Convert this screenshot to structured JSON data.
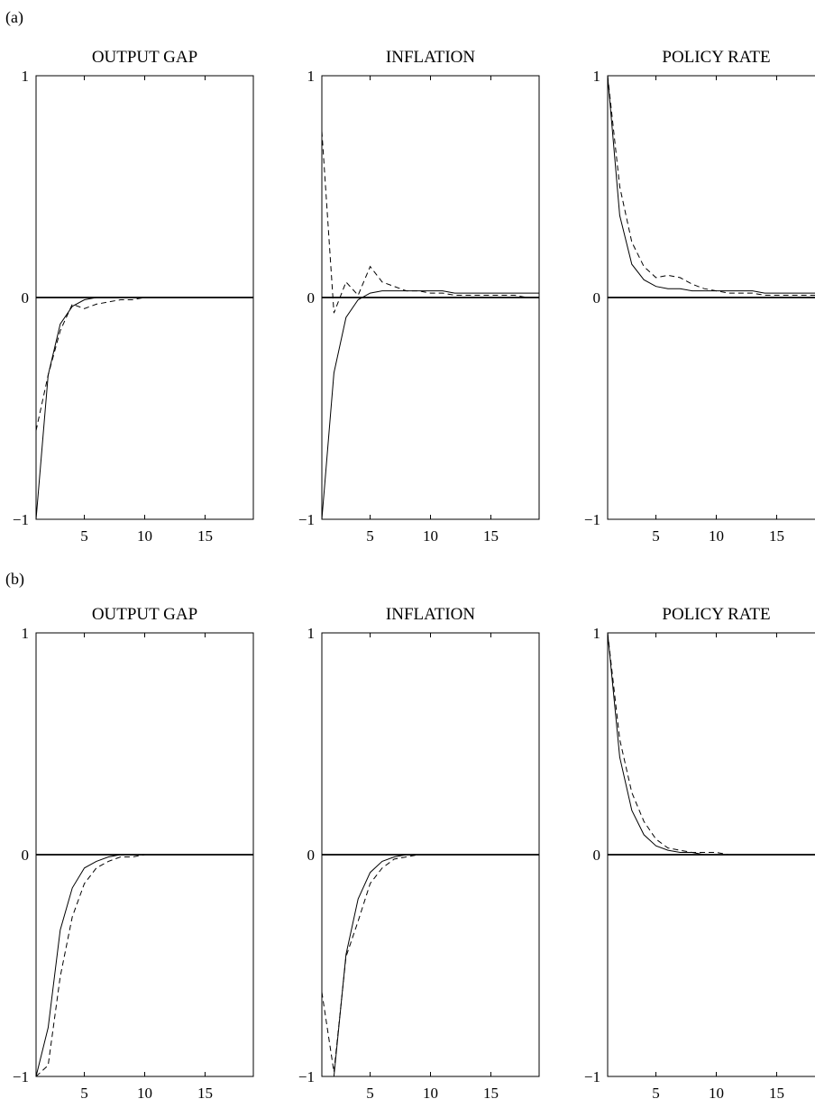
{
  "panel_labels": {
    "a": "(a)",
    "b": "(b)"
  },
  "chart_data": [
    {
      "panel": "a",
      "type": "line",
      "title": "OUTPUT GAP",
      "xlim": [
        1,
        19
      ],
      "ylim": [
        -1,
        1
      ],
      "xticks": [
        5,
        10,
        15
      ],
      "yticks": [
        -1,
        0,
        1
      ],
      "ytick_labels": [
        "−1",
        "0",
        "1"
      ],
      "grid": false,
      "series": [
        {
          "style": "solid",
          "x": [
            1,
            2,
            3,
            4,
            5,
            6,
            7,
            8,
            9,
            10,
            11,
            12,
            13,
            14,
            15,
            16,
            17,
            18,
            19
          ],
          "values": [
            -1.0,
            -0.35,
            -0.12,
            -0.04,
            -0.01,
            0.0,
            0.0,
            0.0,
            0.0,
            0.0,
            0.0,
            0.0,
            0.0,
            0.0,
            0.0,
            0.0,
            0.0,
            0.0,
            0.0
          ]
        },
        {
          "style": "dashed",
          "x": [
            1,
            2,
            3,
            4,
            5,
            6,
            7,
            8,
            9,
            10,
            11,
            12,
            13,
            14,
            15,
            16,
            17,
            18,
            19
          ],
          "values": [
            -0.6,
            -0.35,
            -0.15,
            -0.03,
            -0.05,
            -0.03,
            -0.02,
            -0.01,
            -0.01,
            0.0,
            0.0,
            0.0,
            0.0,
            0.0,
            0.0,
            0.0,
            0.0,
            0.0,
            0.0
          ]
        }
      ]
    },
    {
      "panel": "a",
      "type": "line",
      "title": "INFLATION",
      "xlim": [
        1,
        19
      ],
      "ylim": [
        -1,
        1
      ],
      "xticks": [
        5,
        10,
        15
      ],
      "yticks": [
        -1,
        0,
        1
      ],
      "ytick_labels": [
        "−1",
        "0",
        "1"
      ],
      "grid": false,
      "series": [
        {
          "style": "solid",
          "x": [
            1,
            2,
            3,
            4,
            5,
            6,
            7,
            8,
            9,
            10,
            11,
            12,
            13,
            14,
            15,
            16,
            17,
            18,
            19
          ],
          "values": [
            -1.0,
            -0.34,
            -0.09,
            -0.01,
            0.02,
            0.03,
            0.03,
            0.03,
            0.03,
            0.03,
            0.03,
            0.02,
            0.02,
            0.02,
            0.02,
            0.02,
            0.02,
            0.02,
            0.02
          ]
        },
        {
          "style": "dashed",
          "x": [
            1,
            2,
            3,
            4,
            5,
            6,
            7,
            8,
            9,
            10,
            11,
            12,
            13,
            14,
            15,
            16,
            17,
            18,
            19
          ],
          "values": [
            0.75,
            -0.07,
            0.07,
            0.01,
            0.14,
            0.07,
            0.05,
            0.03,
            0.03,
            0.02,
            0.02,
            0.01,
            0.01,
            0.01,
            0.01,
            0.01,
            0.01,
            0.0,
            0.0
          ]
        }
      ]
    },
    {
      "panel": "a",
      "type": "line",
      "title": "POLICY RATE",
      "xlim": [
        1,
        19
      ],
      "ylim": [
        -1,
        1
      ],
      "xticks": [
        5,
        10,
        15
      ],
      "yticks": [
        -1,
        0,
        1
      ],
      "ytick_labels": [
        "−1",
        "0",
        "1"
      ],
      "grid": false,
      "series": [
        {
          "style": "solid",
          "x": [
            1,
            2,
            3,
            4,
            5,
            6,
            7,
            8,
            9,
            10,
            11,
            12,
            13,
            14,
            15,
            16,
            17,
            18,
            19
          ],
          "values": [
            1.0,
            0.37,
            0.15,
            0.08,
            0.05,
            0.04,
            0.04,
            0.03,
            0.03,
            0.03,
            0.03,
            0.03,
            0.03,
            0.02,
            0.02,
            0.02,
            0.02,
            0.02,
            0.02
          ]
        },
        {
          "style": "dashed",
          "x": [
            1,
            2,
            3,
            4,
            5,
            6,
            7,
            8,
            9,
            10,
            11,
            12,
            13,
            14,
            15,
            16,
            17,
            18,
            19
          ],
          "values": [
            1.0,
            0.5,
            0.25,
            0.14,
            0.09,
            0.1,
            0.09,
            0.06,
            0.04,
            0.03,
            0.02,
            0.02,
            0.02,
            0.01,
            0.01,
            0.01,
            0.01,
            0.01,
            0.01
          ]
        }
      ]
    },
    {
      "panel": "b",
      "type": "line",
      "title": "OUTPUT GAP",
      "xlim": [
        1,
        19
      ],
      "ylim": [
        -1,
        1
      ],
      "xticks": [
        5,
        10,
        15
      ],
      "yticks": [
        -1,
        0,
        1
      ],
      "ytick_labels": [
        "−1",
        "0",
        "1"
      ],
      "grid": false,
      "series": [
        {
          "style": "solid",
          "x": [
            1,
            2,
            3,
            4,
            5,
            6,
            7,
            8,
            9,
            10,
            11,
            12,
            13,
            14,
            15,
            16,
            17,
            18,
            19
          ],
          "values": [
            -1.0,
            -0.78,
            -0.34,
            -0.15,
            -0.06,
            -0.03,
            -0.01,
            0.0,
            0.0,
            0.0,
            0.0,
            0.0,
            0.0,
            0.0,
            0.0,
            0.0,
            0.0,
            0.0,
            0.0
          ]
        },
        {
          "style": "dashed",
          "x": [
            1,
            2,
            3,
            4,
            5,
            6,
            7,
            8,
            9,
            10,
            11,
            12,
            13,
            14,
            15,
            16,
            17,
            18,
            19
          ],
          "values": [
            -1.0,
            -0.95,
            -0.55,
            -0.28,
            -0.13,
            -0.06,
            -0.03,
            -0.01,
            -0.01,
            0.0,
            0.0,
            0.0,
            0.0,
            0.0,
            0.0,
            0.0,
            0.0,
            0.0,
            0.0
          ]
        }
      ]
    },
    {
      "panel": "b",
      "type": "line",
      "title": "INFLATION",
      "xlim": [
        1,
        19
      ],
      "ylim": [
        -1,
        1
      ],
      "xticks": [
        5,
        10,
        15
      ],
      "yticks": [
        -1,
        0,
        1
      ],
      "ytick_labels": [
        "−1",
        "0",
        "1"
      ],
      "grid": false,
      "series": [
        {
          "style": "solid",
          "x": [
            1,
            2,
            3,
            4,
            5,
            6,
            7,
            8,
            9,
            10,
            11,
            12,
            13,
            14,
            15,
            16,
            17,
            18,
            19
          ],
          "values": [
            -1.0,
            -1.0,
            -0.45,
            -0.2,
            -0.08,
            -0.03,
            -0.01,
            0.0,
            0.0,
            0.0,
            0.0,
            0.0,
            0.0,
            0.0,
            0.0,
            0.0,
            0.0,
            0.0,
            0.0
          ]
        },
        {
          "style": "dashed",
          "x": [
            1,
            2,
            3,
            4,
            5,
            6,
            7,
            8,
            9,
            10,
            11,
            12,
            13,
            14,
            15,
            16,
            17,
            18,
            19
          ],
          "values": [
            -0.62,
            -0.98,
            -0.46,
            -0.3,
            -0.13,
            -0.06,
            -0.02,
            -0.01,
            0.0,
            0.0,
            0.0,
            0.0,
            0.0,
            0.0,
            0.0,
            0.0,
            0.0,
            0.0,
            0.0
          ]
        }
      ]
    },
    {
      "panel": "b",
      "type": "line",
      "title": "POLICY RATE",
      "xlim": [
        1,
        19
      ],
      "ylim": [
        -1,
        1
      ],
      "xticks": [
        5,
        10,
        15
      ],
      "yticks": [
        -1,
        0,
        1
      ],
      "ytick_labels": [
        "−1",
        "0",
        "1"
      ],
      "grid": false,
      "series": [
        {
          "style": "solid",
          "x": [
            1,
            2,
            3,
            4,
            5,
            6,
            7,
            8,
            9,
            10,
            11,
            12,
            13,
            14,
            15,
            16,
            17,
            18,
            19
          ],
          "values": [
            1.0,
            0.44,
            0.2,
            0.09,
            0.04,
            0.02,
            0.01,
            0.01,
            0.0,
            0.0,
            0.0,
            0.0,
            0.0,
            0.0,
            0.0,
            0.0,
            0.0,
            0.0,
            0.0
          ]
        },
        {
          "style": "dashed",
          "x": [
            1,
            2,
            3,
            4,
            5,
            6,
            7,
            8,
            9,
            10,
            11,
            12,
            13,
            14,
            15,
            16,
            17,
            18,
            19
          ],
          "values": [
            1.0,
            0.52,
            0.28,
            0.15,
            0.07,
            0.03,
            0.02,
            0.01,
            0.01,
            0.01,
            0.0,
            0.0,
            0.0,
            0.0,
            0.0,
            0.0,
            0.0,
            0.0,
            0.0
          ]
        }
      ]
    }
  ]
}
